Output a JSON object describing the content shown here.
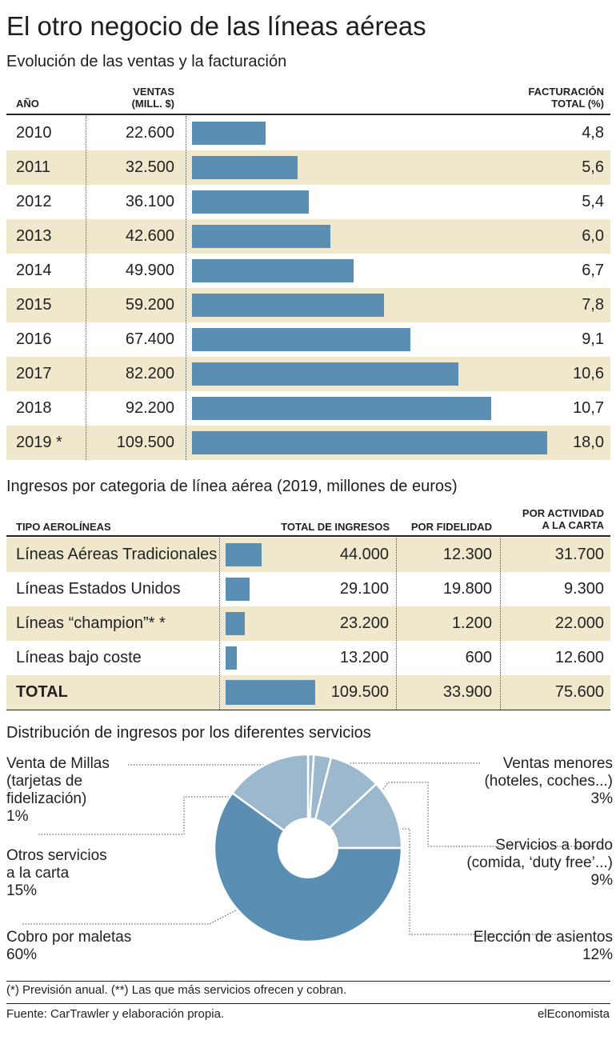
{
  "title": "El otro negocio de las líneas aéreas",
  "colors": {
    "bar": "#5a8fb3",
    "shade": "#efe8cc",
    "pie_dark": "#5a8fb3",
    "pie_light": "#9bb8cc"
  },
  "charts_text": {
    "c1_subtitle": "Evolución de las ventas y la facturación",
    "c1_h_year": "AÑO",
    "c1_h_sales_1": "VENTAS",
    "c1_h_sales_2": "(MILL. $)",
    "c1_h_fact_1": "FACTURACIÓN",
    "c1_h_fact_2": "TOTAL (%)",
    "c2_subtitle": "Ingresos por categoria de línea aérea (2019, millones de euros)",
    "c2_h_type": "TIPO AEROLÍNEAS",
    "c2_h_total": "TOTAL DE INGRESOS",
    "c2_h_fid": "POR FIDELIDAD",
    "c2_h_carta_1": "POR ACTIVIDAD",
    "c2_h_carta_2": "A LA CARTA",
    "c3_subtitle": "Distribución de ingresos por los diferentes servicios"
  },
  "chart_data": [
    {
      "type": "bar",
      "title": "Evolución de las ventas y la facturación",
      "columns": [
        "AÑO",
        "VENTAS (MILL. $)",
        "FACTURACIÓN TOTAL (%)"
      ],
      "rows": [
        {
          "year": "2010",
          "sales_label": "22.600",
          "sales": 22600,
          "pct_label": "4,8",
          "pct": 4.8
        },
        {
          "year": "2011",
          "sales_label": "32.500",
          "sales": 32500,
          "pct_label": "5,6",
          "pct": 5.6
        },
        {
          "year": "2012",
          "sales_label": "36.100",
          "sales": 36100,
          "pct_label": "5,4",
          "pct": 5.4
        },
        {
          "year": "2013",
          "sales_label": "42.600",
          "sales": 42600,
          "pct_label": "6,0",
          "pct": 6.0
        },
        {
          "year": "2014",
          "sales_label": "49.900",
          "sales": 49900,
          "pct_label": "6,7",
          "pct": 6.7
        },
        {
          "year": "2015",
          "sales_label": "59.200",
          "sales": 59200,
          "pct_label": "7,8",
          "pct": 7.8
        },
        {
          "year": "2016",
          "sales_label": "67.400",
          "sales": 67400,
          "pct_label": "9,1",
          "pct": 9.1
        },
        {
          "year": "2017",
          "sales_label": "82.200",
          "sales": 82200,
          "pct_label": "10,6",
          "pct": 10.6
        },
        {
          "year": "2018",
          "sales_label": "92.200",
          "sales": 92200,
          "pct_label": "10,7",
          "pct": 10.7
        },
        {
          "year": "2019 *",
          "sales_label": "109.500",
          "sales": 109500,
          "pct_label": "18,0",
          "pct": 18.0
        }
      ]
    },
    {
      "type": "table",
      "title": "Ingresos por categoria de línea aérea (2019, millones de euros)",
      "columns": [
        "TIPO AEROLÍNEAS",
        "TOTAL DE INGRESOS",
        "POR FIDELIDAD",
        "POR ACTIVIDAD A LA CARTA"
      ],
      "rows": [
        {
          "name": "Líneas Aéreas Tradicionales",
          "total_label": "44.000",
          "total": 44000,
          "fid_label": "12.300",
          "carta_label": "31.700"
        },
        {
          "name": "Líneas Estados Unidos",
          "total_label": "29.100",
          "total": 29100,
          "fid_label": "19.800",
          "carta_label": "9.300"
        },
        {
          "name": "Líneas “champion”* *",
          "total_label": "23.200",
          "total": 23200,
          "fid_label": "1.200",
          "carta_label": "22.000"
        },
        {
          "name": "Líneas bajo coste",
          "total_label": "13.200",
          "total": 13200,
          "fid_label": "600",
          "carta_label": "12.600"
        }
      ],
      "total_row": {
        "name": "TOTAL",
        "total_label": "109.500",
        "total": 109500,
        "fid_label": "33.900",
        "carta_label": "75.600"
      }
    },
    {
      "type": "pie",
      "title": "Distribución de ingresos por los diferentes servicios",
      "slices": [
        {
          "id": "millas",
          "lines": [
            "Venta de Millas",
            "(tarjetas de",
            "fidelización)"
          ],
          "pct_label": "1%",
          "value": 1,
          "tone": "light"
        },
        {
          "id": "menores",
          "lines": [
            "Ventas menores",
            "(hoteles, coches...)"
          ],
          "pct_label": "3%",
          "value": 3,
          "tone": "light"
        },
        {
          "id": "bordo",
          "lines": [
            "Servicios a bordo",
            "(comida, ‘duty free’...)"
          ],
          "pct_label": "9%",
          "value": 9,
          "tone": "light"
        },
        {
          "id": "asientos",
          "lines": [
            "Elección de asientos"
          ],
          "pct_label": "12%",
          "value": 12,
          "tone": "light"
        },
        {
          "id": "maletas",
          "lines": [
            "Cobro por maletas"
          ],
          "pct_label": "60%",
          "value": 60,
          "tone": "dark"
        },
        {
          "id": "otros",
          "lines": [
            "Otros servicios",
            "a la carta"
          ],
          "pct_label": "15%",
          "value": 15,
          "tone": "light"
        }
      ]
    }
  ],
  "footnote": "(*) Previsión anual. (**) Las que más servicios ofrecen y cobran.",
  "source": "Fuente: CarTrawler y elaboración propia.",
  "brand": "elEconomista"
}
